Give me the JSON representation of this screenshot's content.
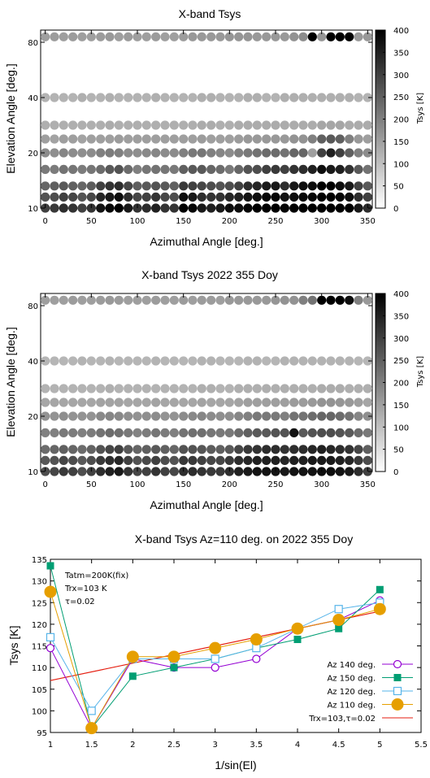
{
  "chart_data": [
    {
      "type": "heatmap",
      "title": "X-band Tsys",
      "xlabel": "Azimuthal Angle [deg.]",
      "ylabel": "Elevation Angle [deg.]",
      "xlim": [
        -5,
        355
      ],
      "ylim": [
        10,
        86
      ],
      "xticks": [
        0,
        50,
        100,
        150,
        200,
        250,
        300,
        350
      ],
      "yticks": [
        10,
        20,
        40,
        80
      ],
      "colorbar": {
        "label": "Tsys [K]",
        "range": [
          0,
          400
        ],
        "ticks": [
          0,
          50,
          100,
          150,
          200,
          250,
          300,
          350,
          400
        ]
      },
      "az": [
        0,
        10,
        20,
        30,
        40,
        50,
        60,
        70,
        80,
        90,
        100,
        110,
        120,
        130,
        140,
        150,
        160,
        170,
        180,
        190,
        200,
        210,
        220,
        230,
        240,
        250,
        260,
        270,
        280,
        290,
        300,
        310,
        320,
        330,
        340,
        350
      ],
      "el_rows": [
        {
          "el": 84,
          "values": [
            150,
            155,
            150,
            155,
            150,
            150,
            155,
            160,
            150,
            155,
            150,
            150,
            155,
            150,
            150,
            155,
            160,
            160,
            160,
            160,
            165,
            165,
            165,
            160,
            160,
            160,
            160,
            170,
            180,
            400,
            165,
            400,
            400,
            400,
            160,
            160
          ]
        },
        {
          "el": 40,
          "values": [
            120,
            120,
            120,
            120,
            125,
            120,
            120,
            125,
            120,
            120,
            120,
            120,
            125,
            120,
            120,
            120,
            120,
            125,
            125,
            120,
            120,
            120,
            125,
            125,
            120,
            120,
            125,
            125,
            125,
            125,
            125,
            125,
            125,
            125,
            120,
            120
          ]
        },
        {
          "el": 30,
          "values": [
            125,
            125,
            125,
            125,
            125,
            125,
            125,
            130,
            125,
            125,
            125,
            125,
            125,
            125,
            125,
            125,
            125,
            130,
            130,
            125,
            125,
            130,
            130,
            130,
            130,
            130,
            130,
            130,
            130,
            130,
            140,
            140,
            140,
            130,
            130,
            130
          ]
        },
        {
          "el": 25,
          "values": [
            150,
            145,
            150,
            150,
            145,
            150,
            150,
            150,
            155,
            150,
            150,
            150,
            150,
            150,
            150,
            150,
            150,
            155,
            150,
            150,
            150,
            155,
            160,
            160,
            160,
            160,
            160,
            170,
            170,
            200,
            250,
            260,
            250,
            200,
            160,
            150
          ]
        },
        {
          "el": 20,
          "values": [
            180,
            175,
            190,
            180,
            175,
            180,
            200,
            205,
            200,
            180,
            175,
            185,
            190,
            180,
            180,
            200,
            210,
            215,
            200,
            190,
            180,
            200,
            210,
            220,
            230,
            230,
            220,
            240,
            240,
            150,
            300,
            350,
            300,
            250,
            200,
            180
          ]
        },
        {
          "el": 17,
          "values": [
            210,
            205,
            220,
            215,
            205,
            215,
            230,
            260,
            270,
            230,
            200,
            215,
            220,
            215,
            210,
            250,
            260,
            260,
            240,
            230,
            210,
            240,
            270,
            280,
            300,
            310,
            300,
            320,
            330,
            350,
            380,
            360,
            350,
            320,
            260,
            220
          ]
        },
        {
          "el": 14,
          "values": [
            240,
            250,
            260,
            250,
            240,
            255,
            300,
            320,
            330,
            290,
            250,
            260,
            270,
            260,
            250,
            310,
            300,
            290,
            280,
            270,
            280,
            300,
            330,
            340,
            360,
            360,
            330,
            360,
            380,
            380,
            400,
            400,
            380,
            360,
            300,
            260
          ]
        },
        {
          "el": 12,
          "values": [
            270,
            280,
            300,
            290,
            270,
            290,
            340,
            360,
            380,
            330,
            290,
            300,
            320,
            290,
            280,
            380,
            360,
            330,
            320,
            320,
            340,
            350,
            370,
            380,
            390,
            390,
            370,
            380,
            390,
            390,
            400,
            400,
            390,
            380,
            330,
            300
          ]
        },
        {
          "el": 10,
          "values": [
            300,
            310,
            330,
            320,
            300,
            320,
            370,
            390,
            400,
            360,
            320,
            330,
            350,
            320,
            320,
            400,
            390,
            360,
            350,
            360,
            380,
            380,
            390,
            400,
            400,
            400,
            390,
            400,
            400,
            400,
            400,
            400,
            400,
            400,
            360,
            330
          ]
        }
      ]
    },
    {
      "type": "heatmap",
      "title": "X-band Tsys 2022 355 Doy",
      "xlabel": "Azimuthal Angle [deg.]",
      "ylabel": "Elevation Angle [deg.]",
      "xlim": [
        -5,
        355
      ],
      "ylim": [
        10,
        86
      ],
      "xticks": [
        0,
        50,
        100,
        150,
        200,
        250,
        300,
        350
      ],
      "yticks": [
        10,
        20,
        40,
        80
      ],
      "colorbar": {
        "label": "Tsys [K]",
        "range": [
          0,
          400
        ],
        "ticks": [
          0,
          50,
          100,
          150,
          200,
          250,
          300,
          350,
          400
        ]
      },
      "az": [
        0,
        10,
        20,
        30,
        40,
        50,
        60,
        70,
        80,
        90,
        100,
        110,
        120,
        130,
        140,
        150,
        160,
        170,
        180,
        190,
        200,
        210,
        220,
        230,
        240,
        250,
        260,
        270,
        280,
        290,
        300,
        310,
        320,
        330,
        340,
        350
      ],
      "el_rows": [
        {
          "el": 84,
          "values": [
            150,
            150,
            150,
            155,
            150,
            150,
            155,
            160,
            155,
            150,
            150,
            150,
            155,
            150,
            150,
            155,
            150,
            155,
            155,
            150,
            160,
            160,
            160,
            160,
            160,
            165,
            170,
            170,
            200,
            220,
            400,
            400,
            400,
            380,
            200,
            160
          ]
        },
        {
          "el": 40,
          "values": [
            115,
            115,
            115,
            115,
            120,
            115,
            115,
            120,
            115,
            115,
            115,
            115,
            120,
            115,
            115,
            115,
            115,
            120,
            120,
            115,
            115,
            115,
            120,
            120,
            115,
            115,
            120,
            120,
            120,
            120,
            120,
            120,
            120,
            120,
            115,
            115
          ]
        },
        {
          "el": 30,
          "values": [
            120,
            120,
            120,
            120,
            120,
            120,
            120,
            125,
            120,
            120,
            120,
            120,
            120,
            120,
            120,
            120,
            120,
            125,
            125,
            120,
            120,
            125,
            125,
            125,
            125,
            125,
            125,
            125,
            125,
            125,
            130,
            130,
            130,
            125,
            125,
            125
          ]
        },
        {
          "el": 25,
          "values": [
            140,
            140,
            140,
            140,
            140,
            140,
            145,
            145,
            145,
            140,
            140,
            140,
            145,
            140,
            140,
            140,
            140,
            145,
            140,
            140,
            140,
            145,
            150,
            150,
            150,
            150,
            150,
            155,
            155,
            160,
            170,
            170,
            165,
            160,
            150,
            140
          ]
        },
        {
          "el": 20,
          "values": [
            170,
            170,
            175,
            170,
            170,
            170,
            185,
            190,
            185,
            175,
            170,
            175,
            180,
            170,
            170,
            180,
            185,
            190,
            180,
            175,
            175,
            190,
            200,
            210,
            210,
            210,
            200,
            220,
            220,
            230,
            240,
            240,
            230,
            220,
            190,
            175
          ]
        },
        {
          "el": 17,
          "values": [
            200,
            200,
            210,
            205,
            200,
            205,
            220,
            230,
            225,
            210,
            195,
            205,
            215,
            205,
            200,
            220,
            225,
            225,
            215,
            210,
            210,
            230,
            250,
            260,
            260,
            270,
            270,
            370,
            260,
            270,
            280,
            280,
            270,
            260,
            230,
            210
          ]
        },
        {
          "el": 14,
          "values": [
            230,
            240,
            250,
            240,
            230,
            245,
            270,
            290,
            300,
            260,
            240,
            250,
            260,
            250,
            240,
            270,
            270,
            265,
            255,
            250,
            260,
            290,
            310,
            320,
            330,
            330,
            320,
            330,
            330,
            340,
            350,
            340,
            330,
            320,
            290,
            250
          ]
        },
        {
          "el": 12,
          "values": [
            260,
            270,
            290,
            280,
            260,
            280,
            310,
            330,
            340,
            300,
            270,
            285,
            300,
            280,
            270,
            310,
            310,
            300,
            290,
            290,
            310,
            330,
            340,
            350,
            350,
            350,
            340,
            350,
            350,
            360,
            360,
            360,
            350,
            340,
            310,
            280
          ]
        },
        {
          "el": 10,
          "values": [
            280,
            290,
            310,
            300,
            280,
            300,
            330,
            350,
            360,
            320,
            290,
            300,
            320,
            300,
            290,
            330,
            330,
            320,
            310,
            310,
            330,
            350,
            360,
            370,
            370,
            370,
            360,
            370,
            370,
            370,
            380,
            380,
            370,
            360,
            330,
            300
          ]
        }
      ]
    },
    {
      "type": "line",
      "title": "X-band Tsys Az=110 deg. on 2022 355 Doy",
      "xlabel": "1/sin(El)",
      "ylabel": "Tsys [K]",
      "xlim": [
        1,
        5.5
      ],
      "ylim": [
        95,
        135
      ],
      "xticks": [
        1,
        1.5,
        2,
        2.5,
        3,
        3.5,
        4,
        4.5,
        5,
        5.5
      ],
      "xtick_labels": [
        "1",
        "1.5",
        "2",
        "2.5",
        "3",
        "3.5",
        "4",
        "4.5",
        "5",
        "5.5"
      ],
      "yticks": [
        95,
        100,
        105,
        110,
        115,
        120,
        125,
        130,
        135
      ],
      "x": [
        1,
        1.5,
        2,
        2.5,
        3,
        3.5,
        4,
        4.5,
        5
      ],
      "series": [
        {
          "name": "Az 140 deg.",
          "color": "#9400d3",
          "marker": "open-circle",
          "values": [
            114.5,
            96,
            112,
            110,
            110,
            112,
            119,
            121,
            125.5
          ]
        },
        {
          "name": "Az 150 deg.",
          "color": "#009e73",
          "marker": "filled-square",
          "values": [
            133.5,
            96,
            108,
            110,
            112,
            114.5,
            116.5,
            119,
            128
          ]
        },
        {
          "name": "Az 120 deg.",
          "color": "#56b4e9",
          "marker": "open-square",
          "values": [
            117,
            100,
            112,
            112,
            112,
            114.5,
            119,
            123.5,
            125
          ]
        },
        {
          "name": "Az 110 deg.",
          "color": "#e69f00",
          "marker": "filled-circle",
          "values": [
            127.5,
            96,
            112.5,
            112.5,
            114.5,
            116.5,
            119,
            121,
            123.5
          ]
        }
      ],
      "fit": {
        "name": "Trx=103,τ=0.02",
        "color": "#e51e10",
        "x": [
          1,
          5
        ],
        "values": [
          107,
          123
        ]
      },
      "annotations": [
        "Tatm=200K(fix)",
        "Trx=103 K",
        "τ=0.02"
      ]
    }
  ]
}
